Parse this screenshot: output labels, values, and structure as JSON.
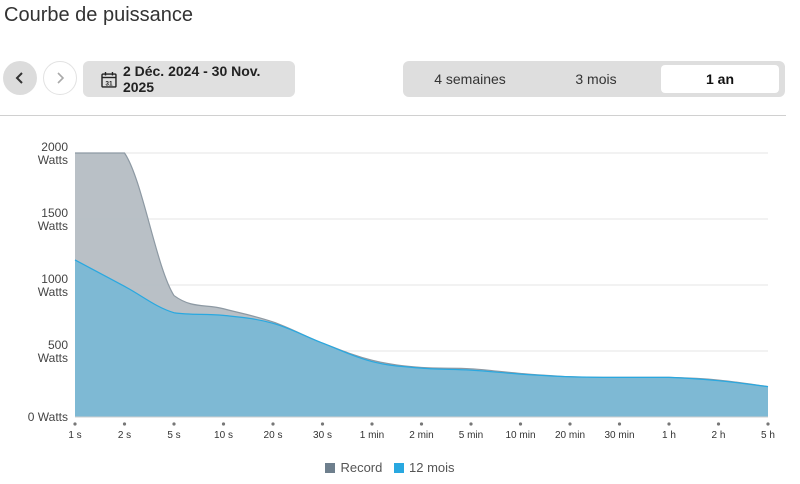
{
  "header": {
    "title": "Courbe de puissance"
  },
  "toolbar": {
    "prev_icon": "chevron-left-icon",
    "next_icon": "chevron-right-icon",
    "calendar_icon": "calendar-icon",
    "calendar_day": "31",
    "date_range": "2 Déc. 2024 - 30 Nov. 2025",
    "periods": [
      {
        "label": "4 semaines",
        "active": false
      },
      {
        "label": "3 mois",
        "active": false
      },
      {
        "label": "1 an",
        "active": true
      }
    ]
  },
  "chart_data": {
    "type": "area",
    "categories": [
      "1 s",
      "2 s",
      "5 s",
      "10 s",
      "20 s",
      "30 s",
      "1 min",
      "2 min",
      "5 min",
      "10 min",
      "20 min",
      "30 min",
      "1 h",
      "2 h",
      "5 h"
    ],
    "series": [
      {
        "name": "Record",
        "color": "#b5bdc3",
        "values": [
          2000,
          2000,
          920,
          820,
          720,
          560,
          430,
          375,
          365,
          330,
          305,
          300,
          300,
          280,
          230
        ]
      },
      {
        "name": "12 mois",
        "color": "#7ab8d5",
        "values": [
          1190,
          990,
          790,
          770,
          710,
          560,
          420,
          370,
          355,
          325,
          305,
          300,
          300,
          275,
          230
        ]
      }
    ],
    "yticks": [
      {
        "value": 0,
        "label": [
          "0 Watts"
        ]
      },
      {
        "value": 500,
        "label": [
          "500",
          "Watts"
        ]
      },
      {
        "value": 1000,
        "label": [
          "1000",
          "Watts"
        ]
      },
      {
        "value": 1500,
        "label": [
          "1500",
          "Watts"
        ]
      },
      {
        "value": 2000,
        "label": [
          "2000",
          "Watts"
        ]
      }
    ],
    "ylim": [
      0,
      2000
    ],
    "grid": true,
    "legend_position": "bottom-center",
    "legend": [
      {
        "label": "Record",
        "color": "#6e7f8d"
      },
      {
        "label": "12 mois",
        "color": "#29a8e0"
      }
    ]
  }
}
